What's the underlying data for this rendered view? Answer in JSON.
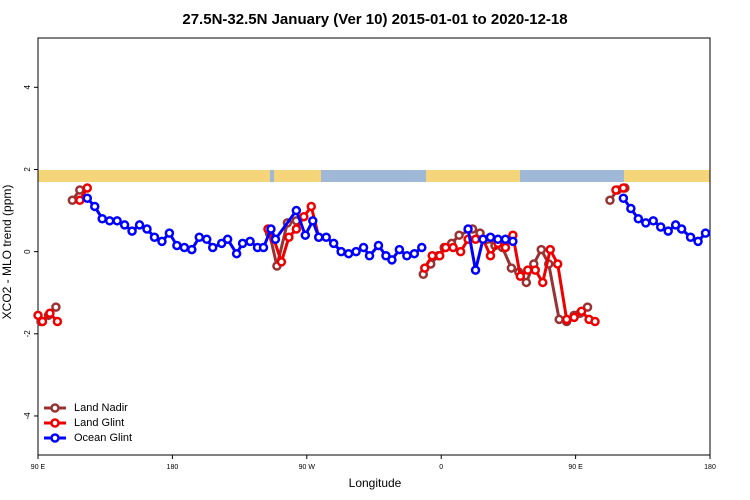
{
  "chart_data": {
    "type": "line",
    "title": "27.5N-32.5N January (Ver 10)   2015-01-01 to 2020-12-18",
    "xlabel": "Longitude",
    "ylabel": "XCO2 - MLO trend (ppm)",
    "xlim": [
      90,
      540
    ],
    "xticks": [
      {
        "value": 90,
        "label": "90 E"
      },
      {
        "value": 180,
        "label": "180"
      },
      {
        "value": 270,
        "label": "90 W"
      },
      {
        "value": 360,
        "label": "0"
      },
      {
        "value": 450,
        "label": "90 E"
      },
      {
        "value": 540,
        "label": "180"
      }
    ],
    "ylim": [
      -4.95,
      5.2
    ],
    "yticks": [
      -4,
      -2,
      0,
      2,
      4
    ],
    "legend": "bottom-left",
    "series": [
      {
        "name": "Land Nadir",
        "color": "#993333",
        "x": [
          92,
          97,
          102,
          null,
          113,
          118,
          null,
          245,
          250,
          257,
          263,
          null,
          348,
          353,
          358,
          362,
          367,
          372,
          381,
          386,
          391,
          396,
          401,
          407,
          412,
          417,
          422,
          427,
          432,
          439,
          444,
          449,
          453,
          458,
          null,
          473,
          478,
          483
        ],
        "values": [
          -1.7,
          -1.55,
          -1.35,
          null,
          1.25,
          1.5,
          null,
          0.45,
          -0.35,
          0.7,
          0.75,
          null,
          -0.55,
          -0.3,
          -0.1,
          0.1,
          0.2,
          0.4,
          0.55,
          0.45,
          0.3,
          0.15,
          0.1,
          -0.4,
          -0.5,
          -0.75,
          -0.3,
          0.05,
          -0.3,
          -1.65,
          -1.7,
          -1.55,
          -1.5,
          -1.35,
          null,
          1.25,
          1.5,
          1.55
        ]
      },
      {
        "name": "Land Glint",
        "color": "#ee0000",
        "x": [
          90,
          93,
          98,
          103,
          null,
          118,
          123,
          null,
          244,
          248,
          253,
          258,
          263,
          268,
          273,
          278,
          null,
          349,
          354,
          359,
          363,
          368,
          373,
          378,
          383,
          388,
          393,
          398,
          403,
          408,
          413,
          418,
          423,
          428,
          433,
          438,
          444,
          449,
          454,
          459,
          463,
          null,
          477,
          482
        ],
        "values": [
          -1.55,
          -1.7,
          -1.5,
          -1.7,
          null,
          1.25,
          1.55,
          null,
          0.55,
          0.3,
          -0.25,
          0.35,
          0.55,
          0.85,
          1.1,
          0.35,
          null,
          -0.4,
          -0.1,
          -0.1,
          0.1,
          0.1,
          0.0,
          0.3,
          0.3,
          0.3,
          -0.1,
          0.2,
          0.1,
          0.4,
          -0.6,
          -0.45,
          -0.45,
          -0.75,
          0.05,
          -0.3,
          -1.65,
          -1.6,
          -1.45,
          -1.65,
          -1.7,
          null,
          1.5,
          1.55
        ]
      },
      {
        "name": "Ocean Glint",
        "color": "#0000ff",
        "x": [
          123,
          128,
          133,
          138,
          143,
          148,
          153,
          158,
          163,
          168,
          173,
          178,
          183,
          188,
          193,
          198,
          203,
          207,
          213,
          217,
          223,
          227,
          232,
          237,
          241,
          246,
          249,
          263,
          269,
          274,
          278,
          283,
          288,
          293,
          298,
          303,
          308,
          312,
          318,
          323,
          327,
          332,
          337,
          342,
          347,
          null,
          378,
          383,
          388,
          393,
          398,
          403,
          408,
          null,
          482,
          487,
          492,
          497,
          502,
          507,
          512,
          517,
          521,
          527,
          532,
          537
        ],
        "values": [
          1.3,
          1.1,
          0.8,
          0.75,
          0.75,
          0.65,
          0.5,
          0.65,
          0.55,
          0.35,
          0.25,
          0.45,
          0.15,
          0.1,
          0.05,
          0.35,
          0.3,
          0.1,
          0.2,
          0.3,
          -0.05,
          0.2,
          0.25,
          0.1,
          0.1,
          0.55,
          0.3,
          1.0,
          0.4,
          0.75,
          0.35,
          0.35,
          0.2,
          0.0,
          -0.05,
          0.0,
          0.1,
          -0.1,
          0.15,
          -0.1,
          -0.2,
          0.05,
          -0.1,
          -0.05,
          0.1,
          null,
          0.55,
          -0.45,
          0.3,
          0.35,
          0.3,
          0.3,
          0.25,
          null,
          1.3,
          1.05,
          0.8,
          0.7,
          0.75,
          0.6,
          0.5,
          0.65,
          0.55,
          0.35,
          0.25,
          0.45
        ]
      }
    ]
  }
}
